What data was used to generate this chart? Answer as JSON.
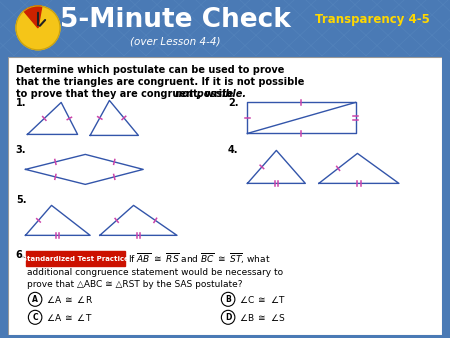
{
  "title": "5-Minute Check",
  "subtitle": "(over Lesson 4-4)",
  "transparency": "Transparency 4-5",
  "header_bg": "#4a7ab5",
  "body_bg": "#ffffff",
  "transparency_color": "#ffd700",
  "mark_color": "#cc44aa",
  "line_color": "#3355aa",
  "grid_line_color": "#5a8ac0",
  "instruction_line1": "Determine which postulate can be used to prove",
  "instruction_line2": "that the triangles are congruent. If it is not possible",
  "instruction_line3a": "to prove that they are congruent, write ",
  "instruction_line3b": "not possible.",
  "q6_label": "Standardized Test Practice",
  "q6_label_bg": "#cc1100",
  "q6_rest": " what",
  "q6_line2": "additional congruence statement would be necessary to",
  "q6_line3": "prove that △ABC ≅ △RST by the SAS postulate?"
}
